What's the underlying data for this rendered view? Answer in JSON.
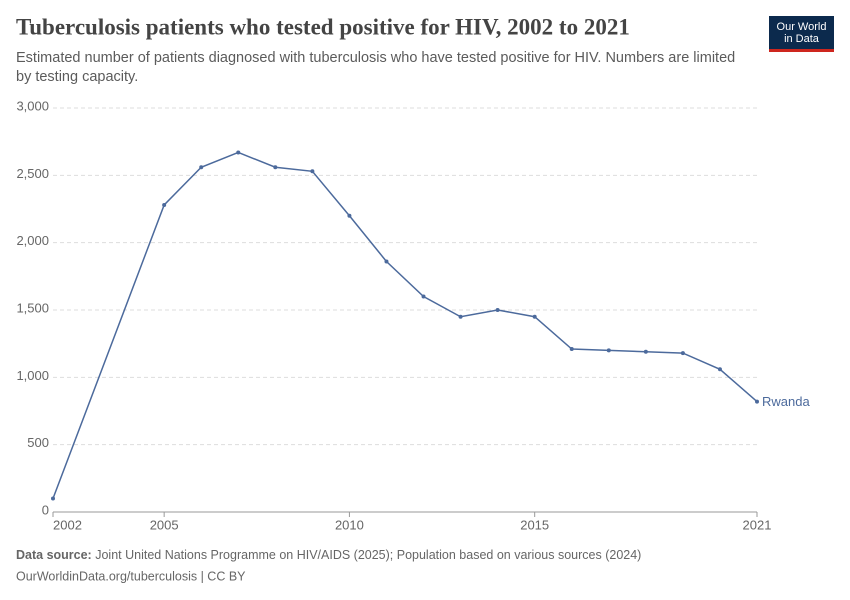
{
  "chart_data": {
    "type": "line",
    "title": "Tuberculosis patients who tested positive for HIV, 2002 to 2021",
    "subtitle": "Estimated number of patients diagnosed with tuberculosis who have tested positive for HIV. Numbers are limited by testing capacity.",
    "logo": "Our World in Data",
    "source_label": "Data source:",
    "source": "Joint United Nations Programme on HIV/AIDS (2025); Population based on various sources (2024)",
    "url": "OurWorldinData.org/tuberculosis | CC BY",
    "x": [
      2002,
      2005,
      2006,
      2007,
      2008,
      2009,
      2010,
      2011,
      2012,
      2013,
      2014,
      2015,
      2016,
      2017,
      2018,
      2019,
      2020,
      2021
    ],
    "series": [
      {
        "name": "Rwanda",
        "color": "#4c6a9c",
        "values": [
          100,
          2280,
          2560,
          2670,
          2560,
          2530,
          2200,
          1860,
          1600,
          1450,
          1500,
          1450,
          1210,
          1200,
          1190,
          1180,
          1060,
          820
        ]
      }
    ],
    "xlim": [
      2002,
      2021
    ],
    "xticks": [
      2002,
      2005,
      2010,
      2015,
      2021
    ],
    "ylim": [
      0,
      3000
    ],
    "yticks": [
      0,
      500,
      {
        "value": 1000,
        "label": "1,000"
      },
      {
        "value": 1500,
        "label": "1,500"
      },
      {
        "value": 2000,
        "label": "2,000"
      },
      {
        "value": 2500,
        "label": "2,500"
      },
      {
        "value": 3000,
        "label": "3,000"
      }
    ],
    "grid": true
  }
}
